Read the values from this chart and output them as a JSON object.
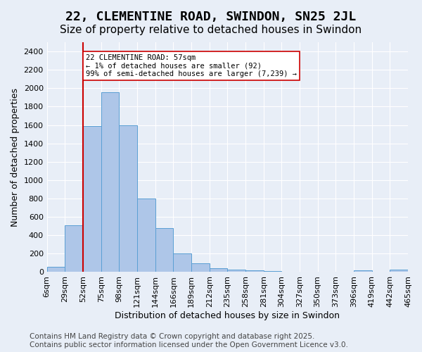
{
  "title": "22, CLEMENTINE ROAD, SWINDON, SN25 2JL",
  "subtitle": "Size of property relative to detached houses in Swindon",
  "xlabel": "Distribution of detached houses by size in Swindon",
  "ylabel": "Number of detached properties",
  "footer": "Contains HM Land Registry data © Crown copyright and database right 2025.\nContains public sector information licensed under the Open Government Licence v3.0.",
  "bin_labels": [
    "6sqm",
    "29sqm",
    "52sqm",
    "75sqm",
    "98sqm",
    "121sqm",
    "144sqm",
    "166sqm",
    "189sqm",
    "212sqm",
    "235sqm",
    "258sqm",
    "281sqm",
    "304sqm",
    "327sqm",
    "350sqm",
    "373sqm",
    "396sqm",
    "419sqm",
    "442sqm",
    "465sqm"
  ],
  "bar_heights": [
    55,
    510,
    1590,
    1960,
    1600,
    800,
    480,
    200,
    95,
    45,
    30,
    15,
    10,
    0,
    0,
    0,
    0,
    20,
    0,
    30
  ],
  "bar_color": "#aec6e8",
  "bar_edge_color": "#5a9fd4",
  "vline_x": 2,
  "vline_color": "#cc0000",
  "annotation_text": "22 CLEMENTINE ROAD: 57sqm\n← 1% of detached houses are smaller (92)\n99% of semi-detached houses are larger (7,239) →",
  "annotation_box_color": "#ffffff",
  "annotation_box_edge": "#cc0000",
  "ylim": [
    0,
    2500
  ],
  "yticks": [
    0,
    200,
    400,
    600,
    800,
    1000,
    1200,
    1400,
    1600,
    1800,
    2000,
    2200,
    2400
  ],
  "bg_color": "#e8eef7",
  "plot_bg_color": "#e8eef7",
  "title_fontsize": 13,
  "subtitle_fontsize": 11,
  "label_fontsize": 9,
  "tick_fontsize": 8,
  "footer_fontsize": 7.5
}
